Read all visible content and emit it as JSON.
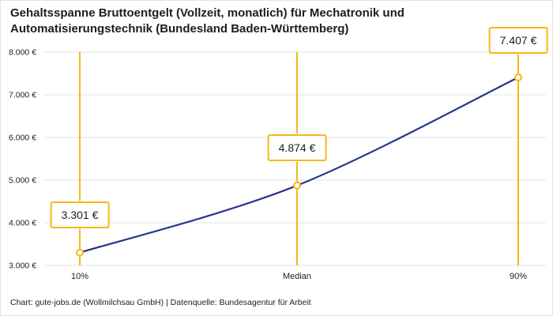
{
  "title": "Gehaltsspanne Bruttoentgelt (Vollzeit, monatlich) für Mechatronik und Automatisierungstechnik (Bundesland Baden-Württemberg)",
  "footer": "Chart: gute-jobs.de (Wollmilchsau GmbH) | Datenquelle: Bundesagentur für Arbeit",
  "colors": {
    "line": "#27348b",
    "accent": "#f5b914",
    "grid": "#e3e3e3",
    "text": "#1d1d1b"
  },
  "chart_data": {
    "type": "line",
    "title": "Gehaltsspanne Bruttoentgelt (Vollzeit, monatlich) für Mechatronik und Automatisierungstechnik (Bundesland Baden-Württemberg)",
    "categories": [
      "10%",
      "Median",
      "90%"
    ],
    "values": [
      3301,
      4874,
      7407
    ],
    "value_labels": [
      "3.301 €",
      "4.874 €",
      "7.407 €"
    ],
    "ylim": [
      3000,
      8000
    ],
    "ytick_step": 1000,
    "ytick_labels": [
      "3.000 €",
      "4.000 €",
      "5.000 €",
      "6.000 €",
      "7.000 €",
      "8.000 €"
    ],
    "grid": true,
    "legend": "none",
    "xlabel": "",
    "ylabel": ""
  }
}
